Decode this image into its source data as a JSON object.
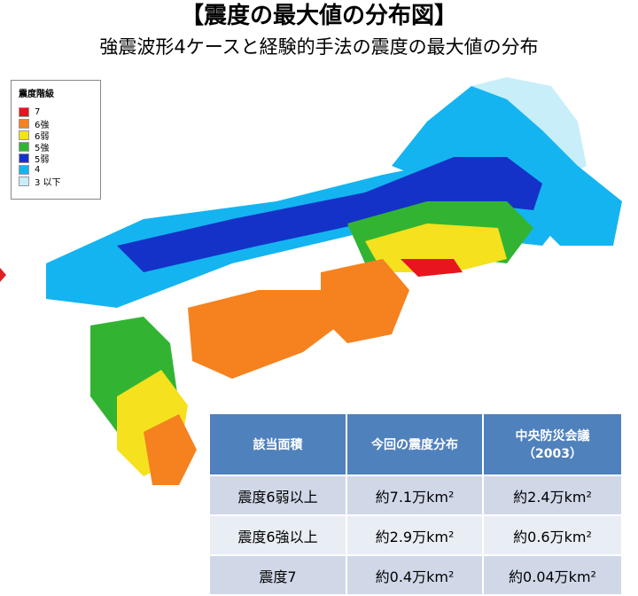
{
  "header": {
    "title": "【震度の最大値の分布図】",
    "subtitle": "強震波形4ケースと経験的手法の震度の最大値の分布"
  },
  "legend": {
    "title": "震度階級",
    "items": [
      {
        "label": "7",
        "color": "#e8141e"
      },
      {
        "label": "6強",
        "color": "#f5821e"
      },
      {
        "label": "6弱",
        "color": "#f5e11e"
      },
      {
        "label": "5強",
        "color": "#32b432"
      },
      {
        "label": "5弱",
        "color": "#1432c8"
      },
      {
        "label": "4",
        "color": "#14b4f0"
      },
      {
        "label": "3 以下",
        "color": "#c8eefa"
      }
    ]
  },
  "table": {
    "header": [
      "該当面積",
      "今回の震度分布",
      "中央防災会議\n（2003）"
    ],
    "rows": [
      [
        "震度6弱以上",
        "約7.1万km²",
        "約2.4万km²"
      ],
      [
        "震度6強以上",
        "約2.9万km²",
        "約0.6万km²"
      ],
      [
        "震度7",
        "約0.4万km²",
        "約0.04万km²"
      ]
    ]
  }
}
